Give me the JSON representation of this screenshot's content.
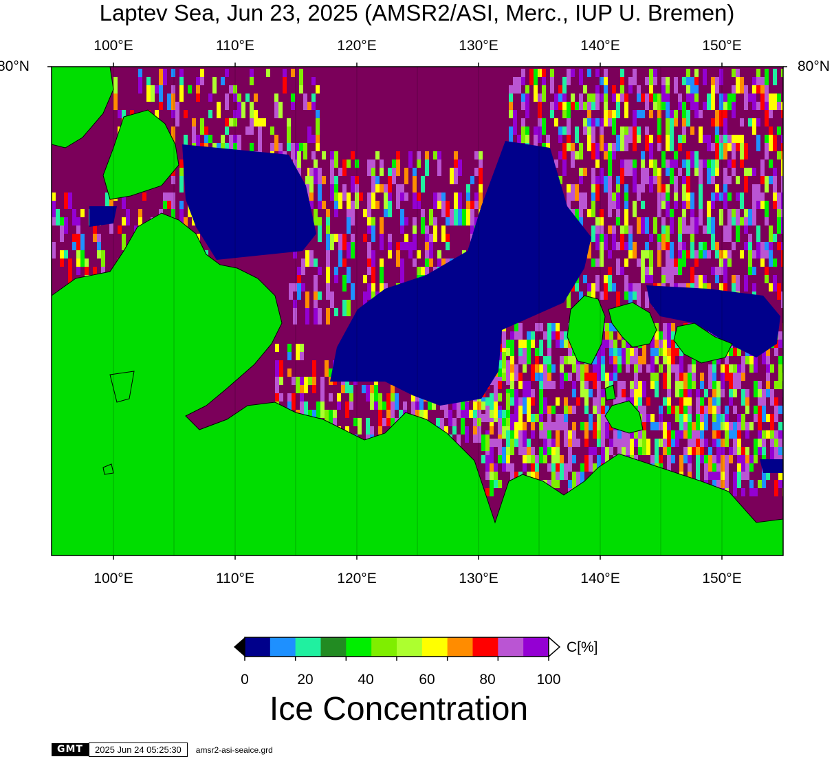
{
  "title": "Laptev Sea, Jun 23, 2025 (AMSR2/ASI, Merc., IUP U. Bremen)",
  "map": {
    "projection": "Mercator",
    "lon_labels": [
      "100°E",
      "110°E",
      "120°E",
      "130°E",
      "140°E",
      "150°E"
    ],
    "lat_labels": [
      "80°N",
      "80°N"
    ]
  },
  "colorbar": {
    "unit": "C[%]",
    "ticks": [
      "0",
      "20",
      "40",
      "60",
      "80",
      "100"
    ],
    "colors": [
      "#00008b",
      "#1e90ff",
      "#20f0a0",
      "#228b22",
      "#00ee00",
      "#7fee00",
      "#adff2f",
      "#ffff00",
      "#ff8c00",
      "#ff0000",
      "#ba55d3",
      "#9400d3",
      "#7b005a"
    ],
    "land_color": "#00dd00",
    "open_water_color": "#00008b",
    "full_ice_color": "#7b005a"
  },
  "legend_title": "Ice Concentration",
  "stamp": {
    "logo": "GMT",
    "timestamp": "2025 Jun 24 05:25:30",
    "file": "amsr2-asi-seaice.grd"
  }
}
